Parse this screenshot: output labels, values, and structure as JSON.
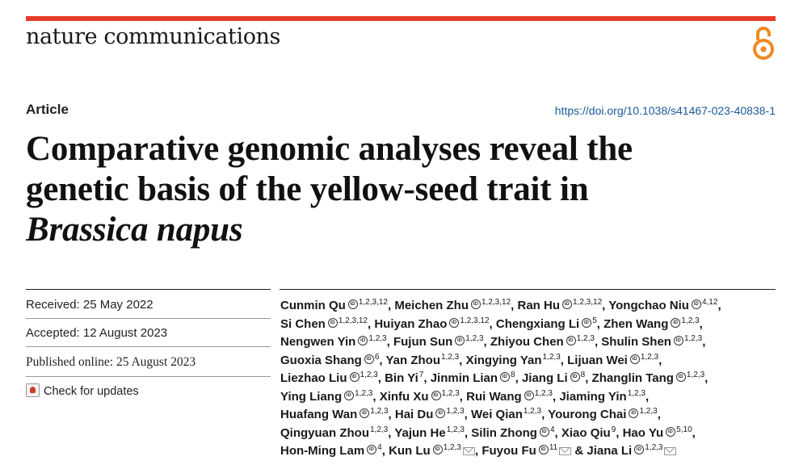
{
  "header": {
    "journal": "nature communications",
    "accent_color": "#e53a2a",
    "open_access_icon": "open-access-icon"
  },
  "article": {
    "type": "Article",
    "doi": "https://doi.org/10.1038/s41467-023-40838-1",
    "title_lines": [
      "Comparative genomic analyses reveal the",
      "genetic basis of the yellow-seed trait in",
      "Brassica napus"
    ]
  },
  "dates": {
    "received": "Received: 25 May 2022",
    "accepted": "Accepted: 12 August 2023",
    "published": "Published online: 25 August 2023",
    "check_updates": "Check for updates"
  },
  "authors": [
    [
      {
        "name": "Cunmin Qu",
        "orcid": true,
        "aff": "1,2,3,12",
        "sep": ", "
      },
      {
        "name": "Meichen Zhu",
        "orcid": true,
        "aff": "1,2,3,12",
        "sep": ", "
      },
      {
        "name": "Ran Hu",
        "orcid": true,
        "aff": "1,2,3,12",
        "sep": ", "
      },
      {
        "name": "Yongchao Niu",
        "orcid": true,
        "aff": "4,12",
        "sep": ","
      }
    ],
    [
      {
        "name": "Si Chen",
        "orcid": true,
        "aff": "1,2,3,12",
        "sep": ", "
      },
      {
        "name": "Huiyan Zhao",
        "orcid": true,
        "aff": "1,2,3,12",
        "sep": ", "
      },
      {
        "name": "Chengxiang Li",
        "orcid": true,
        "aff": "5",
        "sep": ", "
      },
      {
        "name": "Zhen Wang",
        "orcid": true,
        "aff": "1,2,3",
        "sep": ","
      }
    ],
    [
      {
        "name": "Nengwen Yin",
        "orcid": true,
        "aff": "1,2,3",
        "sep": ", "
      },
      {
        "name": "Fujun Sun",
        "orcid": true,
        "aff": "1,2,3",
        "sep": ", "
      },
      {
        "name": "Zhiyou Chen",
        "orcid": true,
        "aff": "1,2,3",
        "sep": ", "
      },
      {
        "name": "Shulin Shen",
        "orcid": true,
        "aff": "1,2,3",
        "sep": ","
      }
    ],
    [
      {
        "name": "Guoxia Shang",
        "orcid": true,
        "aff": "6",
        "sep": ", "
      },
      {
        "name": "Yan Zhou",
        "orcid": false,
        "aff": "1,2,3",
        "sep": ", "
      },
      {
        "name": "Xingying Yan",
        "orcid": false,
        "aff": "1,2,3",
        "sep": ", "
      },
      {
        "name": "Lijuan Wei",
        "orcid": true,
        "aff": "1,2,3",
        "sep": ","
      }
    ],
    [
      {
        "name": "Liezhao Liu",
        "orcid": true,
        "aff": "1,2,3",
        "sep": ", "
      },
      {
        "name": "Bin Yi",
        "orcid": false,
        "aff": "7",
        "sep": ", "
      },
      {
        "name": "Jinmin Lian",
        "orcid": true,
        "aff": "8",
        "sep": ", "
      },
      {
        "name": "Jiang Li",
        "orcid": true,
        "aff": "8",
        "sep": ", "
      },
      {
        "name": "Zhanglin Tang",
        "orcid": true,
        "aff": "1,2,3",
        "sep": ","
      }
    ],
    [
      {
        "name": "Ying Liang",
        "orcid": true,
        "aff": "1,2,3",
        "sep": ", "
      },
      {
        "name": "Xinfu Xu",
        "orcid": true,
        "aff": "1,2,3",
        "sep": ", "
      },
      {
        "name": "Rui Wang",
        "orcid": true,
        "aff": "1,2,3",
        "sep": ", "
      },
      {
        "name": "Jiaming Yin",
        "orcid": false,
        "aff": "1,2,3",
        "sep": ","
      }
    ],
    [
      {
        "name": "Huafang Wan",
        "orcid": true,
        "aff": "1,2,3",
        "sep": ", "
      },
      {
        "name": "Hai Du",
        "orcid": true,
        "aff": "1,2,3",
        "sep": ", "
      },
      {
        "name": "Wei Qian",
        "orcid": false,
        "aff": "1,2,3",
        "sep": ", "
      },
      {
        "name": "Yourong Chai",
        "orcid": true,
        "aff": "1,2,3",
        "sep": ","
      }
    ],
    [
      {
        "name": "Qingyuan Zhou",
        "orcid": false,
        "aff": "1,2,3",
        "sep": ", "
      },
      {
        "name": "Yajun He",
        "orcid": false,
        "aff": "1,2,3",
        "sep": ", "
      },
      {
        "name": "Silin Zhong",
        "orcid": true,
        "aff": "4",
        "sep": ", "
      },
      {
        "name": "Xiao Qiu",
        "orcid": false,
        "aff": "9",
        "sep": ", "
      },
      {
        "name": "Hao Yu",
        "orcid": true,
        "aff": "5,10",
        "sep": ","
      }
    ],
    [
      {
        "name": "Hon-Ming Lam",
        "orcid": true,
        "aff": "4",
        "sep": ", "
      },
      {
        "name": "Kun Lu",
        "orcid": true,
        "aff": "1,2,3",
        "mail": true,
        "sep": ", "
      },
      {
        "name": "Fuyou Fu",
        "orcid": true,
        "aff": "11",
        "mail": true,
        "sep": " & "
      },
      {
        "name": "Jiana Li",
        "orcid": true,
        "aff": "1,2,3",
        "mail": true,
        "sep": ""
      }
    ]
  ]
}
